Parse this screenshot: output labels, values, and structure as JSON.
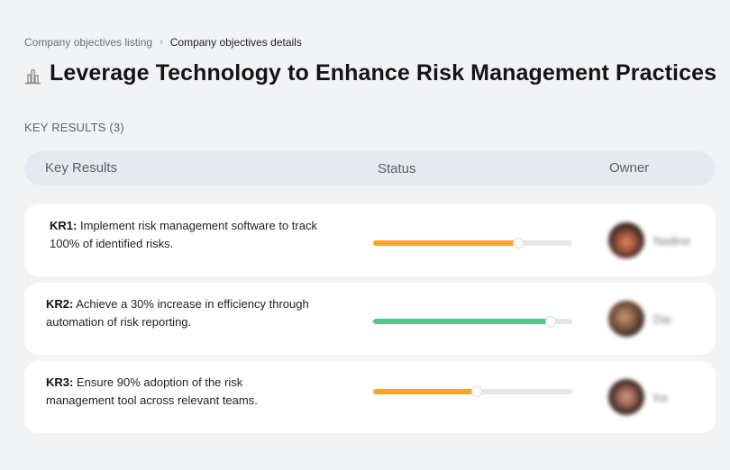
{
  "breadcrumb": {
    "items": [
      {
        "label": "Company objectives listing",
        "link": true
      },
      {
        "label": "Company objectives details",
        "link": false
      }
    ],
    "separator": "›"
  },
  "objective": {
    "icon": "building-chart-icon",
    "title": "Leverage Technology to Enhance Risk Management Practices"
  },
  "key_results_section": {
    "label": "KEY RESULTS (3)",
    "columns": {
      "key_results": "Key Results",
      "status": "Status",
      "owner": "Owner"
    },
    "rows": [
      {
        "id": "KR1:",
        "text": " Implement risk management software to track 100% of identified risks.",
        "progress": 73,
        "progress_color": "#f9a52b",
        "owner_name": "Nadine",
        "avatar_gradient": "radial-gradient(circle at 50% 55%, #e8845a 0%, #a35a3e 30%, #3a2523 65%, #1d1414 100%)"
      },
      {
        "id": "KR2:",
        "text": " Achieve a 30% increase in efficiency through automation of risk reporting.",
        "progress": 89,
        "progress_color": "#55c48a",
        "owner_name": "Dai",
        "avatar_gradient": "radial-gradient(circle at 45% 45%, #c99a7a 0%, #8a5f44 35%, #3c2a22 70%, #241915 100%)"
      },
      {
        "id": "KR3:",
        "text": " Ensure 90% adoption of the risk management tool across relevant teams.",
        "progress": 52,
        "progress_color": "#f9a52b",
        "owner_name": "Ira",
        "avatar_gradient": "radial-gradient(circle at 50% 50%, #d49a86 0%, #a06a5a 30%, #3b2422 65%, #6a3a30 100%)"
      }
    ]
  }
}
